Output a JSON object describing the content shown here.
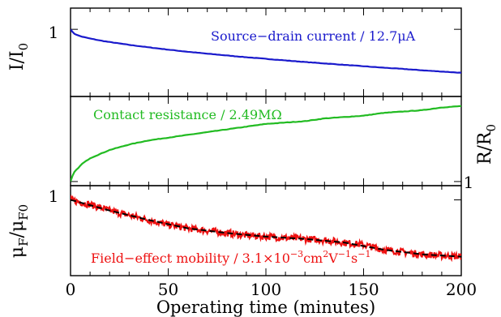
{
  "chart_data": {
    "type": "line",
    "shared_x": {
      "label": "Operating time (minutes)",
      "range": [
        0,
        200
      ],
      "ticks": [
        0,
        50,
        100,
        150,
        200
      ],
      "tick_labels": [
        "0",
        "50",
        "100",
        "150",
        "200"
      ]
    },
    "panels": [
      {
        "id": "current",
        "ylabel_main": "I/I",
        "ylabel_sub": "0",
        "ylabel_side": "left",
        "ytick_label": "1",
        "ytick_value": 1.0,
        "ylim": [
          0.62,
          1.12
        ],
        "annotation": "Source−drain current / 12.7μA",
        "color": "#1a1acc",
        "series": [
          {
            "x": [
              0,
              1,
              2,
              4,
              6,
              10,
              15,
              20,
              30,
              40,
              50,
              60,
              70,
              80,
              90,
              100,
              110,
              120,
              130,
              140,
              150,
              160,
              170,
              180,
              190,
              200
            ],
            "y": [
              1.0,
              0.985,
              0.975,
              0.965,
              0.958,
              0.948,
              0.937,
              0.928,
              0.912,
              0.898,
              0.885,
              0.873,
              0.862,
              0.852,
              0.842,
              0.833,
              0.824,
              0.815,
              0.807,
              0.799,
              0.791,
              0.783,
              0.776,
              0.768,
              0.761,
              0.754
            ]
          }
        ]
      },
      {
        "id": "resistance",
        "ylabel_main": "R/R",
        "ylabel_sub": "0",
        "ylabel_side": "right",
        "ytick_label": "1",
        "ytick_value": 1.0,
        "ylim": [
          0.97,
          1.62
        ],
        "annotation": "Contact resistance / 2.49MΩ",
        "color": "#22bb22",
        "series": [
          {
            "x": [
              0,
              1,
              2,
              4,
              6,
              10,
              15,
              20,
              30,
              40,
              50,
              60,
              70,
              80,
              90,
              100,
              110,
              120,
              130,
              140,
              150,
              160,
              170,
              180,
              190,
              200
            ],
            "y": [
              1.0,
              1.04,
              1.07,
              1.1,
              1.13,
              1.17,
              1.2,
              1.23,
              1.27,
              1.3,
              1.32,
              1.34,
              1.36,
              1.38,
              1.4,
              1.42,
              1.43,
              1.44,
              1.46,
              1.47,
              1.48,
              1.5,
              1.51,
              1.52,
              1.54,
              1.55
            ]
          }
        ]
      },
      {
        "id": "mobility",
        "ylabel_main": "μ",
        "ylabel_sub1": "F",
        "ylabel_slash": "/μ",
        "ylabel_sub2": "F0",
        "ylabel_side": "left",
        "ytick_label": "1",
        "ytick_value": 1.0,
        "ylim": [
          0.68,
          1.06
        ],
        "annotation_main": "Field−effect mobility / 3.1×10",
        "annotation_sup1": "−3",
        "annotation_mid": "cm",
        "annotation_sup2": "2",
        "annotation_v": "V",
        "annotation_sup3": "−1",
        "annotation_s": "s",
        "annotation_sup4": "−1",
        "color": "#ee1111",
        "fit_color": "#000000",
        "series": [
          {
            "kind": "data",
            "x": [
              0,
              10,
              20,
              30,
              40,
              50,
              60,
              70,
              80,
              90,
              100,
              110,
              120,
              130,
              140,
              150,
              160,
              170,
              180,
              190,
              200
            ],
            "y": [
              1.0,
              0.98,
              0.955,
              0.935,
              0.915,
              0.895,
              0.88,
              0.87,
              0.86,
              0.85,
              0.845,
              0.84,
              0.835,
              0.83,
              0.82,
              0.81,
              0.79,
              0.78,
              0.77,
              0.765,
              0.76
            ]
          },
          {
            "kind": "fit",
            "x": [
              0,
              20,
              40,
              60,
              80,
              100,
              120,
              140,
              160,
              180,
              200
            ],
            "y": [
              1.0,
              0.955,
              0.915,
              0.88,
              0.86,
              0.845,
              0.835,
              0.82,
              0.79,
              0.77,
              0.76
            ]
          }
        ]
      }
    ]
  }
}
